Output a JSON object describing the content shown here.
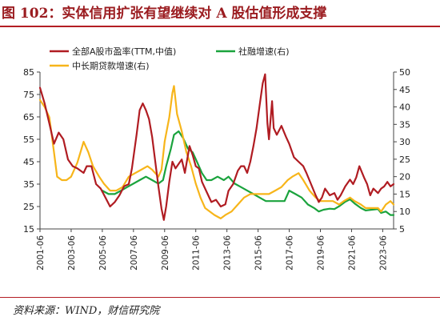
{
  "figure": {
    "title": "图 102：实体信用扩张有望继续对 A 股估值形成支撑",
    "source": "资料来源：WIND，财信研究院"
  },
  "colors": {
    "title": "#9b1c20",
    "rule": "#b31e24",
    "pe": "#b01c22",
    "tsf": "#1aa33d",
    "loan": "#f7b51a",
    "axis": "#444444"
  },
  "chart_data": {
    "type": "line",
    "title": "",
    "x_ticks": [
      "2001-06",
      "2003-06",
      "2005-06",
      "2007-06",
      "2009-06",
      "2011-06",
      "2013-06",
      "2015-06",
      "2017-06",
      "2019-06",
      "2021-06",
      "2023-06"
    ],
    "x_range": [
      2001.0,
      2023.7
    ],
    "y_left": {
      "min": 15,
      "max": 85,
      "ticks": [
        15,
        25,
        35,
        45,
        55,
        65,
        75,
        85
      ]
    },
    "y_right": {
      "min": 5,
      "max": 50,
      "ticks": [
        5,
        10,
        15,
        20,
        25,
        30,
        35,
        40,
        45,
        50
      ]
    },
    "legend_position": "top-left",
    "grid": false,
    "series": [
      {
        "name": "全部A股市盈率(TTM,中值)",
        "axis": "left",
        "color_key": "pe",
        "points": [
          [
            2001.0,
            78
          ],
          [
            2001.3,
            71
          ],
          [
            2001.6,
            62
          ],
          [
            2001.9,
            53
          ],
          [
            2002.2,
            58
          ],
          [
            2002.5,
            55
          ],
          [
            2002.8,
            46
          ],
          [
            2003.1,
            43
          ],
          [
            2003.4,
            42
          ],
          [
            2003.8,
            40
          ],
          [
            2004.0,
            43
          ],
          [
            2004.3,
            43
          ],
          [
            2004.6,
            35
          ],
          [
            2004.9,
            33
          ],
          [
            2005.2,
            29
          ],
          [
            2005.5,
            25
          ],
          [
            2005.8,
            27
          ],
          [
            2006.1,
            30
          ],
          [
            2006.4,
            34
          ],
          [
            2006.7,
            35
          ],
          [
            2006.9,
            42
          ],
          [
            2007.2,
            57
          ],
          [
            2007.4,
            68
          ],
          [
            2007.6,
            71
          ],
          [
            2007.8,
            68
          ],
          [
            2008.0,
            64
          ],
          [
            2008.2,
            56
          ],
          [
            2008.4,
            45
          ],
          [
            2008.6,
            34
          ],
          [
            2008.8,
            24
          ],
          [
            2008.95,
            19
          ],
          [
            2009.1,
            25
          ],
          [
            2009.3,
            36
          ],
          [
            2009.5,
            45
          ],
          [
            2009.7,
            42
          ],
          [
            2009.9,
            44
          ],
          [
            2010.1,
            46
          ],
          [
            2010.3,
            40
          ],
          [
            2010.6,
            52
          ],
          [
            2010.8,
            48
          ],
          [
            2011.0,
            43
          ],
          [
            2011.2,
            42
          ],
          [
            2011.4,
            36
          ],
          [
            2011.6,
            33
          ],
          [
            2011.8,
            30
          ],
          [
            2012.0,
            27
          ],
          [
            2012.3,
            28
          ],
          [
            2012.6,
            25
          ],
          [
            2012.9,
            26
          ],
          [
            2013.1,
            32
          ],
          [
            2013.4,
            35
          ],
          [
            2013.7,
            41
          ],
          [
            2013.9,
            43
          ],
          [
            2014.1,
            43
          ],
          [
            2014.3,
            40
          ],
          [
            2014.5,
            45
          ],
          [
            2014.7,
            52
          ],
          [
            2014.9,
            60
          ],
          [
            2015.1,
            70
          ],
          [
            2015.3,
            80
          ],
          [
            2015.45,
            84
          ],
          [
            2015.6,
            62
          ],
          [
            2015.7,
            55
          ],
          [
            2015.9,
            72
          ],
          [
            2016.0,
            60
          ],
          [
            2016.2,
            57
          ],
          [
            2016.5,
            61
          ],
          [
            2016.8,
            56
          ],
          [
            2017.0,
            53
          ],
          [
            2017.3,
            47
          ],
          [
            2017.6,
            45
          ],
          [
            2017.9,
            43
          ],
          [
            2018.1,
            40
          ],
          [
            2018.4,
            35
          ],
          [
            2018.7,
            30
          ],
          [
            2018.9,
            27
          ],
          [
            2019.1,
            29
          ],
          [
            2019.3,
            33
          ],
          [
            2019.6,
            30
          ],
          [
            2019.9,
            31
          ],
          [
            2020.1,
            28
          ],
          [
            2020.3,
            30
          ],
          [
            2020.6,
            34
          ],
          [
            2020.9,
            37
          ],
          [
            2021.1,
            35
          ],
          [
            2021.3,
            38
          ],
          [
            2021.5,
            43
          ],
          [
            2021.8,
            38
          ],
          [
            2022.0,
            35
          ],
          [
            2022.2,
            30
          ],
          [
            2022.4,
            33
          ],
          [
            2022.7,
            31
          ],
          [
            2022.9,
            33
          ],
          [
            2023.1,
            34
          ],
          [
            2023.3,
            36
          ],
          [
            2023.5,
            34
          ],
          [
            2023.7,
            35
          ]
        ]
      },
      {
        "name": "社融增速(右)",
        "axis": "right",
        "color_key": "tsf",
        "points": [
          [
            2005.0,
            16
          ],
          [
            2005.4,
            15
          ],
          [
            2005.8,
            15
          ],
          [
            2006.2,
            16
          ],
          [
            2006.6,
            17
          ],
          [
            2007.0,
            18
          ],
          [
            2007.4,
            19
          ],
          [
            2007.8,
            20
          ],
          [
            2008.2,
            19
          ],
          [
            2008.6,
            18
          ],
          [
            2008.9,
            19
          ],
          [
            2009.1,
            23
          ],
          [
            2009.4,
            28
          ],
          [
            2009.6,
            32
          ],
          [
            2009.9,
            33
          ],
          [
            2010.2,
            31
          ],
          [
            2010.5,
            28
          ],
          [
            2010.8,
            27
          ],
          [
            2011.1,
            24
          ],
          [
            2011.4,
            21
          ],
          [
            2011.7,
            19
          ],
          [
            2012.0,
            19
          ],
          [
            2012.4,
            20
          ],
          [
            2012.8,
            19
          ],
          [
            2013.1,
            20
          ],
          [
            2013.5,
            18
          ],
          [
            2013.9,
            17
          ],
          [
            2014.3,
            16
          ],
          [
            2014.7,
            15
          ],
          [
            2015.1,
            14
          ],
          [
            2015.5,
            13
          ],
          [
            2015.9,
            13
          ],
          [
            2016.3,
            13
          ],
          [
            2016.7,
            13
          ],
          [
            2016.9,
            15
          ],
          [
            2017.0,
            16
          ],
          [
            2017.4,
            15
          ],
          [
            2017.8,
            14
          ],
          [
            2018.2,
            12
          ],
          [
            2018.6,
            11
          ],
          [
            2018.9,
            10
          ],
          [
            2019.2,
            10.5
          ],
          [
            2019.6,
            10.8
          ],
          [
            2019.9,
            10.7
          ],
          [
            2020.2,
            11.5
          ],
          [
            2020.6,
            12.8
          ],
          [
            2020.9,
            13.5
          ],
          [
            2021.2,
            12.3
          ],
          [
            2021.6,
            11
          ],
          [
            2021.9,
            10.3
          ],
          [
            2022.3,
            10.5
          ],
          [
            2022.7,
            10.7
          ],
          [
            2022.9,
            9.6
          ],
          [
            2023.2,
            10
          ],
          [
            2023.5,
            9
          ],
          [
            2023.7,
            9
          ]
        ]
      },
      {
        "name": "中长期贷款增速(右)",
        "axis": "right",
        "color_key": "loan",
        "points": [
          [
            2001.0,
            42
          ],
          [
            2001.3,
            40
          ],
          [
            2001.6,
            37
          ],
          [
            2001.9,
            27
          ],
          [
            2002.1,
            20
          ],
          [
            2002.4,
            19
          ],
          [
            2002.7,
            19
          ],
          [
            2003.0,
            20
          ],
          [
            2003.4,
            24
          ],
          [
            2003.8,
            30
          ],
          [
            2004.1,
            27
          ],
          [
            2004.4,
            23
          ],
          [
            2004.8,
            20
          ],
          [
            2005.1,
            18
          ],
          [
            2005.5,
            16
          ],
          [
            2005.9,
            16
          ],
          [
            2006.3,
            17
          ],
          [
            2006.7,
            20
          ],
          [
            2007.1,
            21
          ],
          [
            2007.5,
            22
          ],
          [
            2007.9,
            23
          ],
          [
            2008.2,
            22
          ],
          [
            2008.6,
            20
          ],
          [
            2008.8,
            22
          ],
          [
            2009.0,
            30
          ],
          [
            2009.3,
            37
          ],
          [
            2009.5,
            44
          ],
          [
            2009.6,
            46
          ],
          [
            2009.8,
            38
          ],
          [
            2010.1,
            33
          ],
          [
            2010.4,
            27
          ],
          [
            2010.7,
            23
          ],
          [
            2011.0,
            18
          ],
          [
            2011.3,
            14
          ],
          [
            2011.6,
            11
          ],
          [
            2011.9,
            10
          ],
          [
            2012.2,
            9
          ],
          [
            2012.6,
            8
          ],
          [
            2012.9,
            9
          ],
          [
            2013.3,
            10
          ],
          [
            2013.7,
            12
          ],
          [
            2014.1,
            14
          ],
          [
            2014.5,
            15
          ],
          [
            2014.9,
            15
          ],
          [
            2015.3,
            15
          ],
          [
            2015.7,
            15
          ],
          [
            2016.1,
            16
          ],
          [
            2016.5,
            17
          ],
          [
            2016.9,
            19
          ],
          [
            2017.2,
            20
          ],
          [
            2017.6,
            21
          ],
          [
            2017.9,
            19
          ],
          [
            2018.3,
            16
          ],
          [
            2018.7,
            14
          ],
          [
            2019.0,
            13
          ],
          [
            2019.4,
            13
          ],
          [
            2019.8,
            13
          ],
          [
            2020.2,
            12
          ],
          [
            2020.5,
            13
          ],
          [
            2020.9,
            14
          ],
          [
            2021.2,
            13
          ],
          [
            2021.6,
            12
          ],
          [
            2021.9,
            11
          ],
          [
            2022.3,
            11
          ],
          [
            2022.7,
            11
          ],
          [
            2022.9,
            10
          ],
          [
            2023.2,
            12
          ],
          [
            2023.5,
            13
          ],
          [
            2023.7,
            12
          ]
        ]
      }
    ]
  }
}
